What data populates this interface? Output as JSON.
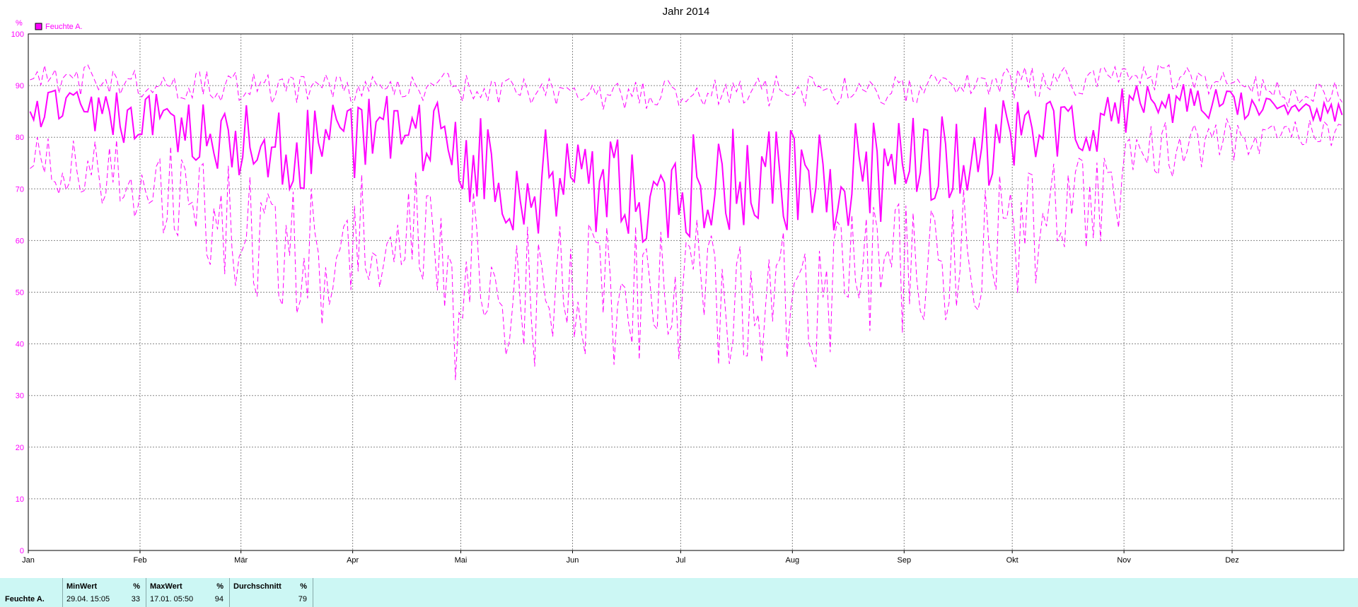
{
  "chart_data": {
    "type": "line",
    "title": "Jahr 2014",
    "ylabel": "%",
    "ylim": [
      0,
      100
    ],
    "yticks": [
      "0",
      "10",
      "20",
      "30",
      "40",
      "50",
      "60",
      "70",
      "80",
      "90",
      "100"
    ],
    "xlabels": [
      "Jan",
      "Feb",
      "Mär",
      "Apr",
      "Mai",
      "Jun",
      "Jul",
      "Aug",
      "Sep",
      "Okt",
      "Nov",
      "Dez"
    ],
    "month_start_days": [
      0,
      31,
      59,
      90,
      120,
      151,
      181,
      212,
      243,
      273,
      304,
      334
    ],
    "days_in_year": 365,
    "grid": true,
    "legend_position": "top-left",
    "legend": "Feuchte A.",
    "color": "#ff00ff",
    "monthly_profile": {
      "mean": [
        85,
        82,
        76,
        82,
        72,
        70,
        71,
        72,
        78,
        82,
        87,
        85
      ],
      "max": [
        91,
        90,
        89,
        90,
        89,
        88,
        89,
        89,
        90,
        91,
        92,
        88
      ],
      "min": [
        75,
        68,
        55,
        65,
        50,
        50,
        50,
        50,
        58,
        66,
        78,
        81
      ]
    },
    "min_point": {
      "day": 118,
      "value": 33
    },
    "max_point": {
      "day": 16,
      "value": 94
    }
  },
  "stats": {
    "series_name": "Feuchte A.",
    "min_header": "MinWert",
    "min_unit": "%",
    "min_time": "29.04.  15:05",
    "min_value": "33",
    "max_header": "MaxWert",
    "max_unit": "%",
    "max_time": "17.01.  05:50",
    "max_value": "94",
    "avg_header": "Durchschnitt",
    "avg_unit": "%",
    "avg_value": "79"
  }
}
